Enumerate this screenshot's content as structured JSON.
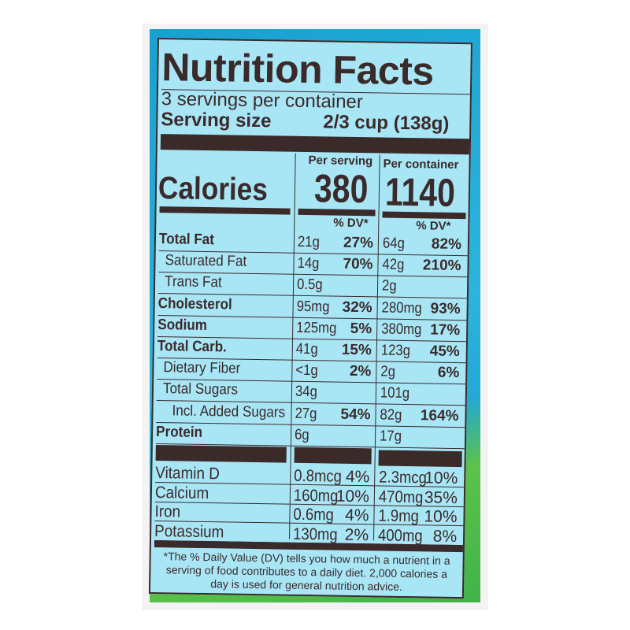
{
  "colors": {
    "label_bg": "#a8e6f6",
    "ink": "#3a2a2a",
    "bg_blue": "#1aa0d0",
    "bg_green": "#3fb34a"
  },
  "title": "Nutrition Facts",
  "servings": "3 servings per container",
  "serving_size_label": "Serving size",
  "serving_size_value": "2/3 cup  (138g)",
  "calories_label": "Calories",
  "per_serving_header": "Per serving",
  "per_container_header": "Per container",
  "calories_serving": "380",
  "calories_container": "1140",
  "dv_header": "% DV*",
  "nutrients": [
    {
      "name": "Total Fat",
      "bold": true,
      "indent": 0,
      "s_amt": "21g",
      "s_dv": "27%",
      "c_amt": "64g",
      "c_dv": "82%"
    },
    {
      "name": "Saturated Fat",
      "bold": false,
      "indent": 1,
      "s_amt": "14g",
      "s_dv": "70%",
      "c_amt": "42g",
      "c_dv": "210%"
    },
    {
      "name": "Trans Fat",
      "bold": false,
      "indent": 1,
      "s_amt": "0.5g",
      "s_dv": "",
      "c_amt": "2g",
      "c_dv": ""
    },
    {
      "name": "Cholesterol",
      "bold": true,
      "indent": 0,
      "s_amt": "95mg",
      "s_dv": "32%",
      "c_amt": "280mg",
      "c_dv": "93%"
    },
    {
      "name": "Sodium",
      "bold": true,
      "indent": 0,
      "s_amt": "125mg",
      "s_dv": "5%",
      "c_amt": "380mg",
      "c_dv": "17%"
    },
    {
      "name": "Total Carb.",
      "bold": true,
      "indent": 0,
      "s_amt": "41g",
      "s_dv": "15%",
      "c_amt": "123g",
      "c_dv": "45%"
    },
    {
      "name": "Dietary Fiber",
      "bold": false,
      "indent": 1,
      "s_amt": "<1g",
      "s_dv": "2%",
      "c_amt": "2g",
      "c_dv": "6%"
    },
    {
      "name": "Total Sugars",
      "bold": false,
      "indent": 1,
      "s_amt": "34g",
      "s_dv": "",
      "c_amt": "101g",
      "c_dv": ""
    },
    {
      "name": "Incl. Added Sugars",
      "bold": false,
      "indent": 2,
      "s_amt": "27g",
      "s_dv": "54%",
      "c_amt": "82g",
      "c_dv": "164%"
    },
    {
      "name": "Protein",
      "bold": true,
      "indent": 0,
      "s_amt": "6g",
      "s_dv": "",
      "c_amt": "17g",
      "c_dv": ""
    }
  ],
  "vitamins": [
    {
      "name": "Vitamin D",
      "s_amt": "0.8mcg",
      "s_dv": "4%",
      "c_amt": "2.3mcg",
      "c_dv": "10%"
    },
    {
      "name": "Calcium",
      "s_amt": "160mg",
      "s_dv": "10%",
      "c_amt": "470mg",
      "c_dv": "35%"
    },
    {
      "name": "Iron",
      "s_amt": "0.6mg",
      "s_dv": "4%",
      "c_amt": "1.9mg",
      "c_dv": "10%"
    },
    {
      "name": "Potassium",
      "s_amt": "130mg",
      "s_dv": "2%",
      "c_amt": "400mg",
      "c_dv": "8%"
    }
  ],
  "footnote": "*The % Daily Value (DV) tells you how much a nutrient in a serving of food contributes to a daily diet. 2,000 calories a day is used for general nutrition advice."
}
